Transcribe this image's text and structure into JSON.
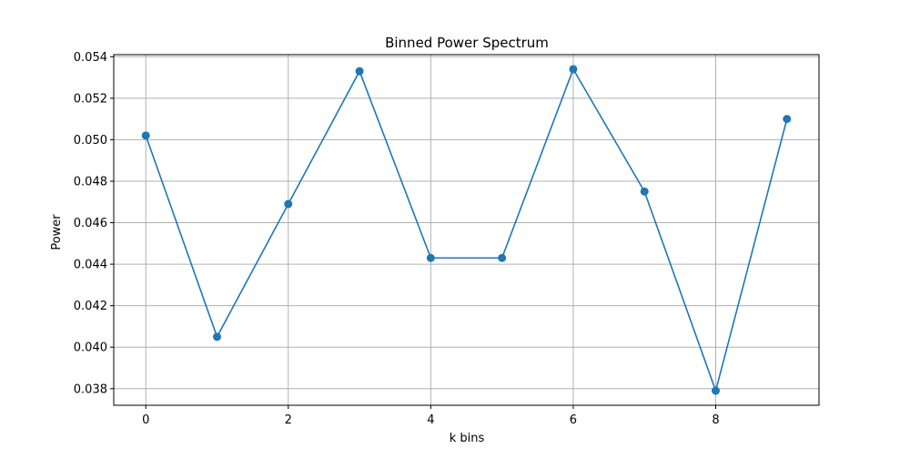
{
  "chart_data": {
    "type": "line",
    "title": "Binned Power Spectrum",
    "xlabel": "k bins",
    "ylabel": "Power",
    "xlim": [
      -0.45,
      9.45
    ],
    "ylim": [
      0.0372,
      0.0541
    ],
    "grid": true,
    "xticks": [
      0,
      2,
      4,
      6,
      8
    ],
    "xtick_labels": [
      "0",
      "2",
      "4",
      "6",
      "8"
    ],
    "yticks": [
      0.038,
      0.04,
      0.042,
      0.044,
      0.046,
      0.048,
      0.05,
      0.052,
      0.054
    ],
    "ytick_labels": [
      "0.038",
      "0.040",
      "0.042",
      "0.044",
      "0.046",
      "0.048",
      "0.050",
      "0.052",
      "0.054"
    ],
    "series": [
      {
        "color": "#1f77b4",
        "marker": "circle",
        "x": [
          0,
          1,
          2,
          3,
          4,
          5,
          6,
          7,
          8,
          9
        ],
        "y": [
          0.0502,
          0.0405,
          0.0469,
          0.0533,
          0.0443,
          0.0443,
          0.0534,
          0.0475,
          0.0379,
          0.051
        ]
      }
    ]
  }
}
